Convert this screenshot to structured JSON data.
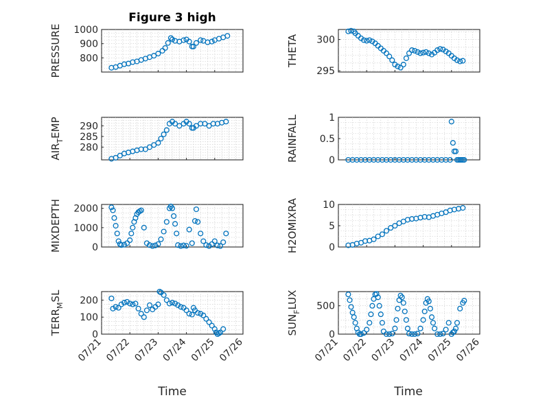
{
  "figure": {
    "title": "Figure 3 high",
    "marker_color": "#0072BD",
    "xlabel": "Time",
    "x_tick_labels": [
      "07/21",
      "07/22",
      "07/23",
      "07/24",
      "07/25",
      "07/26"
    ]
  },
  "chart_data": [
    {
      "type": "scatter",
      "id": "pressure",
      "ylabel": "PRESSURE",
      "xlim": [
        21.0,
        26.0
      ],
      "ylim": [
        700,
        1000
      ],
      "yticks": [
        800,
        900,
        1000
      ],
      "grid": true,
      "x": [
        21.35,
        21.5,
        21.65,
        21.8,
        21.95,
        22.1,
        22.25,
        22.4,
        22.55,
        22.7,
        22.85,
        23.0,
        23.15,
        23.25,
        23.35,
        23.45,
        23.5,
        23.6,
        23.75,
        23.9,
        24.0,
        24.1,
        24.2,
        24.25,
        24.35,
        24.5,
        24.6,
        24.75,
        24.9,
        25.0,
        25.15,
        25.3,
        25.45
      ],
      "y": [
        730,
        735,
        745,
        755,
        760,
        770,
        775,
        785,
        795,
        805,
        815,
        830,
        850,
        870,
        905,
        940,
        930,
        920,
        915,
        925,
        930,
        915,
        880,
        880,
        905,
        925,
        920,
        910,
        915,
        925,
        935,
        945,
        955
      ]
    },
    {
      "type": "scatter",
      "id": "theta",
      "ylabel": "THETA",
      "xlim": [
        21.0,
        26.0
      ],
      "ylim": [
        294.8,
        301.6
      ],
      "yticks": [
        295,
        300
      ],
      "grid": true,
      "x": [
        21.35,
        21.45,
        21.55,
        21.6,
        21.7,
        21.8,
        21.9,
        22.0,
        22.1,
        22.2,
        22.3,
        22.4,
        22.5,
        22.6,
        22.7,
        22.8,
        22.9,
        23.0,
        23.1,
        23.2,
        23.3,
        23.4,
        23.5,
        23.6,
        23.7,
        23.8,
        23.9,
        24.0,
        24.1,
        24.2,
        24.3,
        24.4,
        24.5,
        24.6,
        24.7,
        24.8,
        24.9,
        25.0,
        25.1,
        25.2,
        25.3,
        25.4
      ],
      "y": [
        301.3,
        301.4,
        301.3,
        301.0,
        300.6,
        300.2,
        299.9,
        299.8,
        299.9,
        299.7,
        299.4,
        299.0,
        298.6,
        298.2,
        297.8,
        297.3,
        296.7,
        296.0,
        295.7,
        295.5,
        296.0,
        297.0,
        297.8,
        298.3,
        298.2,
        298.0,
        297.8,
        297.9,
        298.0,
        297.8,
        297.6,
        297.9,
        298.3,
        298.5,
        298.4,
        298.1,
        297.8,
        297.4,
        297.0,
        296.7,
        296.5,
        296.6
      ]
    },
    {
      "type": "scatter",
      "id": "air_temp",
      "ylabel": "AIR_TEMP",
      "xlim": [
        21.0,
        26.0
      ],
      "ylim": [
        274,
        294
      ],
      "yticks": [
        280,
        285,
        290
      ],
      "grid": true,
      "x": [
        21.35,
        21.5,
        21.65,
        21.8,
        21.95,
        22.1,
        22.25,
        22.4,
        22.55,
        22.7,
        22.85,
        23.0,
        23.1,
        23.2,
        23.3,
        23.4,
        23.5,
        23.6,
        23.75,
        23.9,
        24.0,
        24.1,
        24.2,
        24.25,
        24.35,
        24.5,
        24.65,
        24.8,
        24.95,
        25.1,
        25.25,
        25.4
      ],
      "y": [
        274.5,
        275,
        276,
        277,
        277.5,
        278,
        278.5,
        279,
        279,
        280,
        281,
        282,
        284,
        286,
        288,
        291,
        292,
        291,
        290,
        291,
        292,
        291,
        289,
        289,
        290,
        291,
        291,
        290,
        291,
        291,
        291.5,
        292
      ]
    },
    {
      "type": "scatter",
      "id": "rainfall",
      "ylabel": "RAINFALL",
      "xlim": [
        21.0,
        26.0
      ],
      "ylim": [
        0,
        1
      ],
      "yticks": [
        0,
        0.5,
        1
      ],
      "grid": true,
      "x": [
        21.35,
        21.5,
        21.65,
        21.8,
        21.95,
        22.1,
        22.25,
        22.4,
        22.55,
        22.7,
        22.85,
        23.0,
        23.15,
        23.3,
        23.45,
        23.6,
        23.75,
        23.9,
        24.05,
        24.2,
        24.35,
        24.5,
        24.65,
        24.8,
        24.95,
        25.0,
        25.05,
        25.1,
        25.15,
        25.2,
        25.25,
        25.3,
        25.35,
        25.4,
        25.45
      ],
      "y": [
        0,
        0,
        0,
        0,
        0,
        0,
        0,
        0,
        0,
        0,
        0,
        0,
        0,
        0,
        0,
        0,
        0,
        0,
        0,
        0,
        0,
        0,
        0,
        0,
        0,
        0.9,
        0.4,
        0.2,
        0.2,
        0,
        0,
        0,
        0,
        0,
        0
      ]
    },
    {
      "type": "scatter",
      "id": "mixdepth",
      "ylabel": "MIXDEPTH",
      "xlim": [
        21.0,
        26.0
      ],
      "ylim": [
        0,
        2200
      ],
      "yticks": [
        0,
        1000,
        2000
      ],
      "grid": true,
      "x": [
        21.35,
        21.4,
        21.45,
        21.5,
        21.55,
        21.6,
        21.65,
        21.7,
        21.8,
        21.9,
        22.0,
        22.05,
        22.1,
        22.15,
        22.2,
        22.25,
        22.3,
        22.35,
        22.4,
        22.5,
        22.6,
        22.7,
        22.8,
        22.9,
        23.0,
        23.1,
        23.2,
        23.3,
        23.4,
        23.45,
        23.5,
        23.55,
        23.6,
        23.65,
        23.7,
        23.8,
        23.9,
        24.0,
        24.1,
        24.2,
        24.3,
        24.35,
        24.4,
        24.5,
        24.6,
        24.7,
        24.8,
        24.9,
        25.0,
        25.1,
        25.2,
        25.3,
        25.4
      ],
      "y": [
        2050,
        1900,
        1500,
        1100,
        700,
        300,
        150,
        100,
        120,
        200,
        350,
        700,
        1000,
        1300,
        1500,
        1700,
        1800,
        1850,
        1900,
        1000,
        200,
        100,
        50,
        80,
        150,
        400,
        800,
        1300,
        2000,
        2100,
        2000,
        1600,
        1200,
        700,
        100,
        50,
        80,
        60,
        900,
        200,
        1350,
        1950,
        1300,
        700,
        300,
        100,
        50,
        150,
        300,
        80,
        50,
        250,
        700
      ]
    },
    {
      "type": "scatter",
      "id": "h2omixra",
      "ylabel": "H2OMIXRA",
      "xlim": [
        21.0,
        26.0
      ],
      "ylim": [
        0,
        10
      ],
      "yticks": [
        0,
        5,
        10
      ],
      "grid": true,
      "x": [
        21.35,
        21.5,
        21.65,
        21.8,
        21.95,
        22.1,
        22.25,
        22.4,
        22.55,
        22.7,
        22.85,
        23.0,
        23.15,
        23.3,
        23.45,
        23.6,
        23.75,
        23.9,
        24.05,
        24.2,
        24.35,
        24.5,
        24.65,
        24.8,
        24.95,
        25.1,
        25.25,
        25.4
      ],
      "y": [
        0.4,
        0.5,
        0.8,
        1.0,
        1.4,
        1.5,
        1.8,
        2.5,
        3.0,
        3.8,
        4.5,
        5.0,
        5.6,
        6.0,
        6.4,
        6.6,
        6.7,
        6.9,
        7.1,
        7.0,
        7.3,
        7.6,
        7.9,
        8.2,
        8.6,
        8.8,
        9.0,
        9.2
      ]
    },
    {
      "type": "scatter",
      "id": "terr_msl",
      "ylabel": "TERR_MSL",
      "xlim": [
        21.0,
        26.0
      ],
      "ylim": [
        0,
        250
      ],
      "yticks": [
        0,
        100,
        200
      ],
      "grid": true,
      "x": [
        21.35,
        21.4,
        21.5,
        21.6,
        21.7,
        21.8,
        21.9,
        22.0,
        22.1,
        22.2,
        22.3,
        22.4,
        22.5,
        22.6,
        22.7,
        22.8,
        22.9,
        23.0,
        23.05,
        23.1,
        23.2,
        23.3,
        23.4,
        23.5,
        23.6,
        23.7,
        23.8,
        23.9,
        24.0,
        24.1,
        24.2,
        24.25,
        24.3,
        24.4,
        24.5,
        24.6,
        24.7,
        24.8,
        24.9,
        25.0,
        25.05,
        25.1,
        25.15,
        25.2,
        25.3
      ],
      "y": [
        210,
        150,
        160,
        155,
        175,
        185,
        190,
        180,
        175,
        180,
        150,
        120,
        100,
        140,
        170,
        145,
        160,
        175,
        250,
        245,
        230,
        200,
        180,
        185,
        180,
        170,
        160,
        155,
        140,
        120,
        115,
        155,
        140,
        125,
        120,
        110,
        90,
        70,
        50,
        30,
        10,
        0,
        5,
        10,
        30
      ]
    },
    {
      "type": "scatter",
      "id": "sun_flux",
      "ylabel": "SUN_FLUX",
      "xlim": [
        21.0,
        26.0
      ],
      "ylim": [
        0,
        750
      ],
      "yticks": [
        0,
        500
      ],
      "grid": true,
      "x": [
        21.35,
        21.4,
        21.45,
        21.5,
        21.55,
        21.6,
        21.65,
        21.7,
        21.75,
        21.8,
        21.9,
        22.0,
        22.1,
        22.15,
        22.2,
        22.25,
        22.3,
        22.35,
        22.4,
        22.45,
        22.5,
        22.55,
        22.6,
        22.7,
        22.8,
        22.9,
        23.0,
        23.05,
        23.1,
        23.15,
        23.2,
        23.25,
        23.3,
        23.35,
        23.4,
        23.45,
        23.5,
        23.6,
        23.7,
        23.8,
        23.9,
        24.0,
        24.05,
        24.1,
        24.15,
        24.2,
        24.25,
        24.3,
        24.35,
        24.4,
        24.5,
        24.6,
        24.7,
        24.8,
        24.9,
        25.0,
        25.05,
        25.1,
        25.15,
        25.2,
        25.3,
        25.4,
        25.45
      ],
      "y": [
        700,
        600,
        480,
        380,
        300,
        200,
        100,
        30,
        0,
        0,
        20,
        80,
        200,
        350,
        500,
        620,
        700,
        710,
        650,
        500,
        350,
        200,
        50,
        0,
        0,
        10,
        100,
        250,
        450,
        600,
        680,
        650,
        550,
        400,
        250,
        100,
        10,
        0,
        0,
        10,
        100,
        250,
        400,
        550,
        620,
        580,
        450,
        300,
        200,
        100,
        0,
        0,
        10,
        80,
        200,
        0,
        30,
        50,
        100,
        200,
        450,
        550,
        590
      ]
    }
  ]
}
